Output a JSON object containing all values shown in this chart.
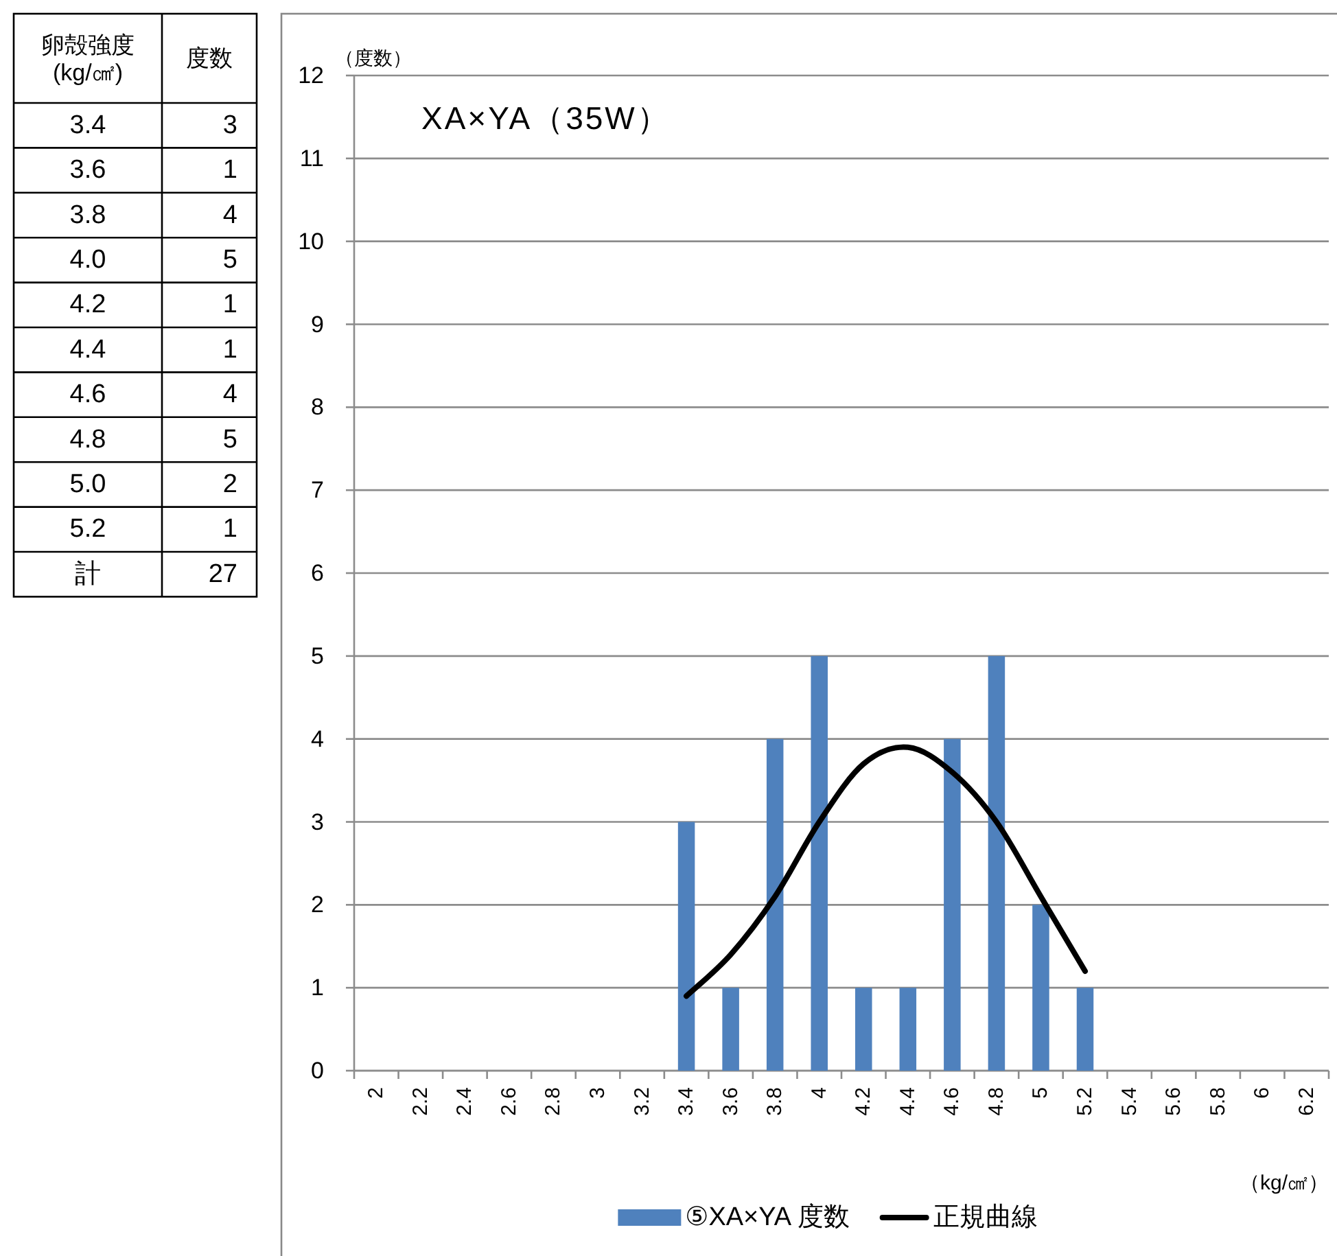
{
  "chart_data": [
    {
      "type": "heatmap",
      "ylabel": "卵殻強度\n(kg/㎠)",
      "categories": [
        "度数"
      ],
      "y_categories": [
        "3.4",
        "3.6",
        "3.8",
        "4.0",
        "4.2",
        "4.4",
        "4.6",
        "4.8",
        "5.0",
        "5.2",
        "計"
      ],
      "cells": [
        [
          3
        ],
        [
          1
        ],
        [
          4
        ],
        [
          5
        ],
        [
          1
        ],
        [
          1
        ],
        [
          4
        ],
        [
          5
        ],
        [
          2
        ],
        [
          1
        ],
        [
          27
        ]
      ],
      "data_labels": true
    },
    {
      "type": "bar",
      "title": "XA×YA（35W）",
      "ylabel": "（度数）",
      "xlabel": "（kg/㎠）",
      "categories": [
        "2",
        "2.2",
        "2.4",
        "2.6",
        "2.8",
        "3",
        "3.2",
        "3.4",
        "3.6",
        "3.8",
        "4",
        "4.2",
        "4.4",
        "4.6",
        "4.8",
        "5",
        "5.2",
        "5.4",
        "5.6",
        "5.8",
        "6",
        "6.2"
      ],
      "series": [
        {
          "name": "⑤XA×YA 度数",
          "color": "#4f81bd",
          "values": [
            0,
            0,
            0,
            0,
            0,
            0,
            0,
            3,
            1,
            4,
            5,
            1,
            1,
            4,
            5,
            2,
            1,
            0,
            0,
            0,
            0,
            0
          ]
        },
        {
          "name": "正規曲線",
          "type": "line",
          "color": "#000000",
          "values": [
            null,
            null,
            null,
            null,
            null,
            null,
            null,
            0.9,
            1.4,
            2.1,
            3.0,
            3.7,
            3.9,
            3.6,
            3.0,
            2.1,
            1.2,
            null,
            null,
            null,
            null,
            null
          ]
        }
      ],
      "ylim": [
        0,
        12
      ],
      "yticks": [
        0,
        1,
        2,
        3,
        4,
        5,
        6,
        7,
        8,
        9,
        10,
        11,
        12
      ],
      "grid": "y",
      "legend": "bottom"
    }
  ]
}
